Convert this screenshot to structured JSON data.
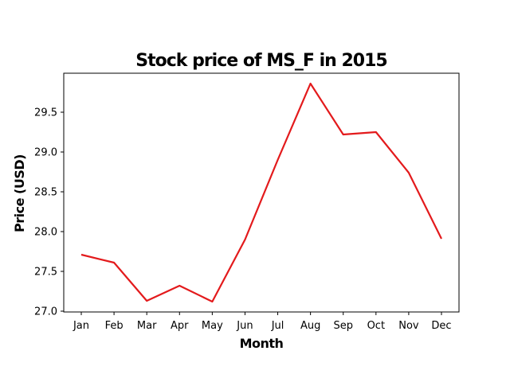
{
  "chart_data": {
    "type": "line",
    "title": "Stock price of MS_F in 2015",
    "xlabel": "Month",
    "ylabel": "Price (USD)",
    "categories": [
      "Jan",
      "Feb",
      "Mar",
      "Apr",
      "May",
      "Jun",
      "Jul",
      "Aug",
      "Sep",
      "Oct",
      "Nov",
      "Dec"
    ],
    "series": [
      {
        "values": [
          27.71,
          27.61,
          27.13,
          27.32,
          27.12,
          27.9,
          28.9,
          29.86,
          29.22,
          29.25,
          28.74,
          27.91
        ],
        "color": "#e31a1c"
      }
    ],
    "yticks": [
      "27.0",
      "27.5",
      "28.0",
      "28.5",
      "29.0",
      "29.5"
    ],
    "ylim": [
      26.99,
      29.99
    ],
    "grid": false,
    "legend": "none"
  }
}
